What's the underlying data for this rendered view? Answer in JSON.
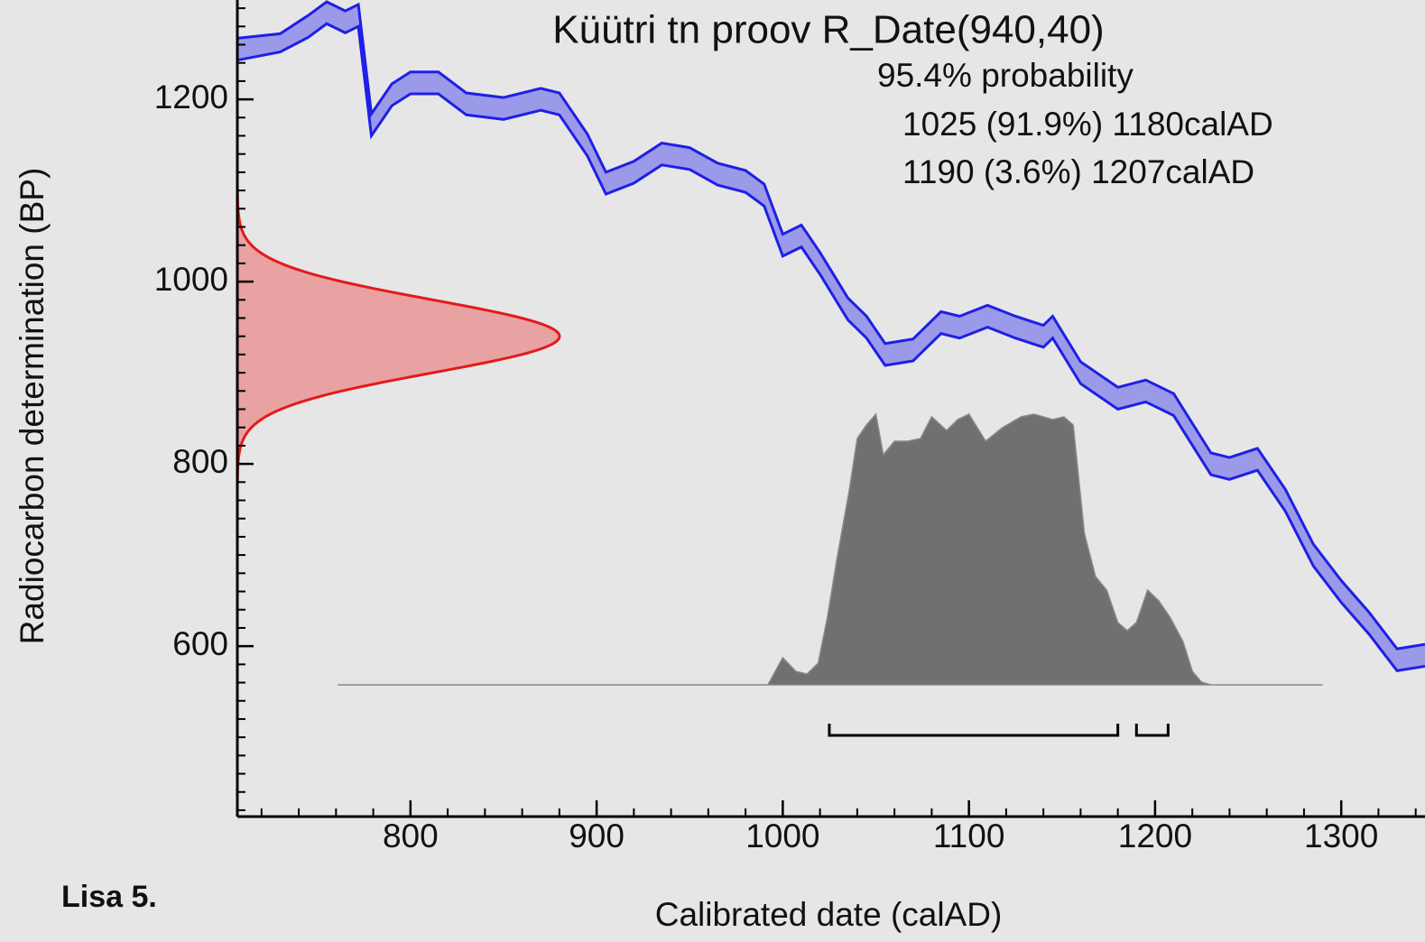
{
  "chart_data": {
    "type": "calibration",
    "title": "Küütri tn proov R_Date(940,40)",
    "probability_label": "95.4% probability",
    "x_label": "Calibrated date (calAD)",
    "y_label": "Radiocarbon determination (BP)",
    "caption": "Lisa 5.",
    "xlim": [
      707,
      1345
    ],
    "ylim": [
      413,
      1309
    ],
    "xticks": [
      800,
      900,
      1000,
      1100,
      1200,
      1300
    ],
    "yticks": [
      600,
      800,
      1000,
      1200
    ],
    "x_minor_step": 20,
    "y_minor_step": 20,
    "measurement": {
      "mean": 940,
      "sd": 40,
      "color": "#e41a1c",
      "fill": "#e8a2a2"
    },
    "calibration": {
      "color": "#1f1fe6",
      "fill": "#9a9ae8",
      "x": [
        707,
        730,
        745,
        755,
        765,
        772,
        779,
        790,
        800,
        815,
        830,
        850,
        870,
        880,
        895,
        905,
        920,
        935,
        950,
        965,
        980,
        990,
        1000,
        1010,
        1020,
        1035,
        1045,
        1055,
        1070,
        1085,
        1095,
        1110,
        1125,
        1140,
        1145,
        1160,
        1180,
        1195,
        1210,
        1230,
        1240,
        1255,
        1270,
        1285,
        1300,
        1315,
        1330,
        1345
      ],
      "upper": [
        1267,
        1272,
        1292,
        1307,
        1297,
        1304,
        1184,
        1217,
        1230,
        1230,
        1207,
        1202,
        1212,
        1207,
        1162,
        1120,
        1132,
        1152,
        1147,
        1130,
        1122,
        1107,
        1052,
        1062,
        1032,
        982,
        962,
        932,
        937,
        967,
        962,
        974,
        962,
        952,
        962,
        912,
        884,
        892,
        877,
        812,
        807,
        817,
        772,
        712,
        672,
        637,
        597,
        602
      ],
      "lower": [
        1243,
        1252,
        1268,
        1283,
        1273,
        1280,
        1160,
        1193,
        1206,
        1206,
        1183,
        1178,
        1188,
        1183,
        1138,
        1096,
        1108,
        1128,
        1123,
        1106,
        1098,
        1083,
        1028,
        1038,
        1008,
        958,
        938,
        908,
        913,
        943,
        938,
        950,
        938,
        928,
        938,
        888,
        860,
        868,
        853,
        788,
        783,
        793,
        748,
        688,
        648,
        613,
        573,
        578
      ]
    },
    "posterior": {
      "color": "#707070",
      "x": [
        761,
        992,
        1000,
        1007,
        1013,
        1019,
        1024,
        1029,
        1036,
        1040,
        1045,
        1050,
        1054,
        1060,
        1067,
        1074,
        1080,
        1088,
        1094,
        1100,
        1109,
        1118,
        1128,
        1135,
        1145,
        1151,
        1156,
        1162,
        1168,
        1174,
        1180,
        1185,
        1190,
        1196,
        1202,
        1208,
        1215,
        1220,
        1225,
        1230,
        1290
      ],
      "values": [
        0,
        0,
        10,
        5,
        4,
        8,
        25,
        46,
        73,
        91,
        96,
        100,
        85,
        90,
        90,
        91,
        99,
        94,
        98,
        100,
        90,
        95,
        99,
        100,
        98,
        99,
        96,
        56,
        40,
        35,
        23,
        20,
        23,
        35,
        31,
        25,
        16,
        5,
        1,
        0,
        0
      ]
    },
    "ranges": [
      {
        "from": 1025,
        "to": 1180,
        "label": "1025 (91.9%) 1180calAD"
      },
      {
        "from": 1190,
        "to": 1207,
        "label": "1190 (3.6%) 1207calAD"
      }
    ]
  }
}
